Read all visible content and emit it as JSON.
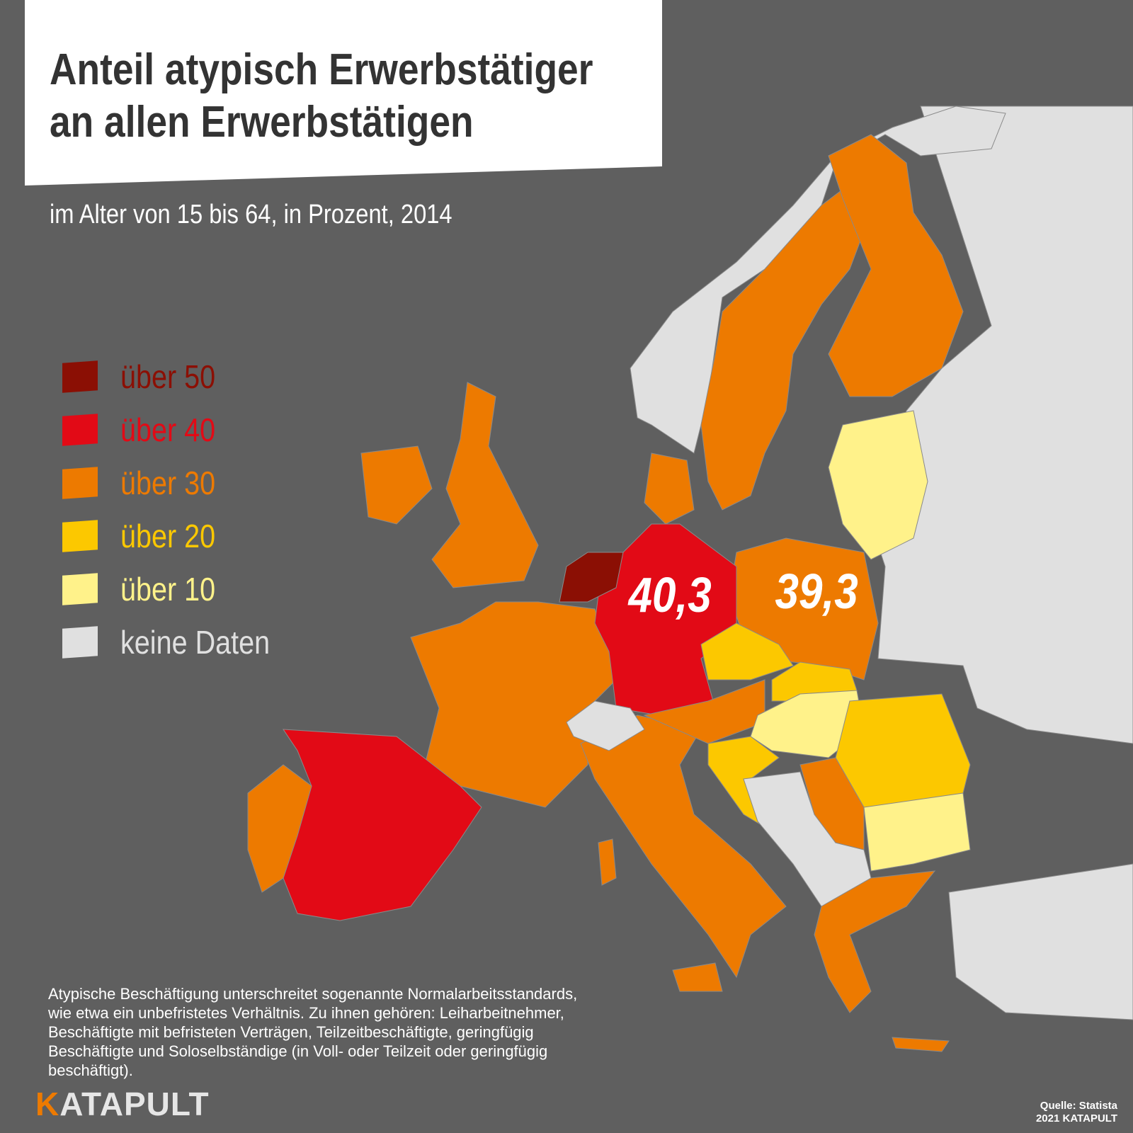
{
  "header": {
    "title_lines": [
      "Anteil atypisch Erwerbstätiger",
      "an allen Erwerbstätigen"
    ],
    "subtitle": "im Alter von 15 bis 64, in Prozent, 2014"
  },
  "legend": {
    "items": [
      {
        "label": "über 50",
        "color": "#8b0f04"
      },
      {
        "label": "über 40",
        "color": "#e20a16"
      },
      {
        "label": "über 30",
        "color": "#ed7a00"
      },
      {
        "label": "über 20",
        "color": "#fcc800"
      },
      {
        "label": "über 10",
        "color": "#fff28a"
      },
      {
        "label": "keine Daten",
        "color": "#e0e0e0"
      }
    ]
  },
  "map_labels": [
    {
      "country": "Deutschland",
      "text": "40,3"
    },
    {
      "country": "Polen",
      "text": "39,3"
    }
  ],
  "footnote": "Atypische Beschäftigung unterschreitet sogenannte Normalarbeitsstandards, wie etwa ein unbefristetes Verhältnis. Zu ihnen gehören: Leiharbeitnehmer, Beschäftigte mit befristeten Verträgen, Teilzeitbeschäftigte, geringfügig Beschäftigte und Soloselbständige (in Voll- oder Teilzeit oder geringfügig beschäftigt).",
  "footer": {
    "logo": "KATAPULT",
    "source": "Quelle: Statista",
    "copyright": "2021 KATAPULT"
  }
}
